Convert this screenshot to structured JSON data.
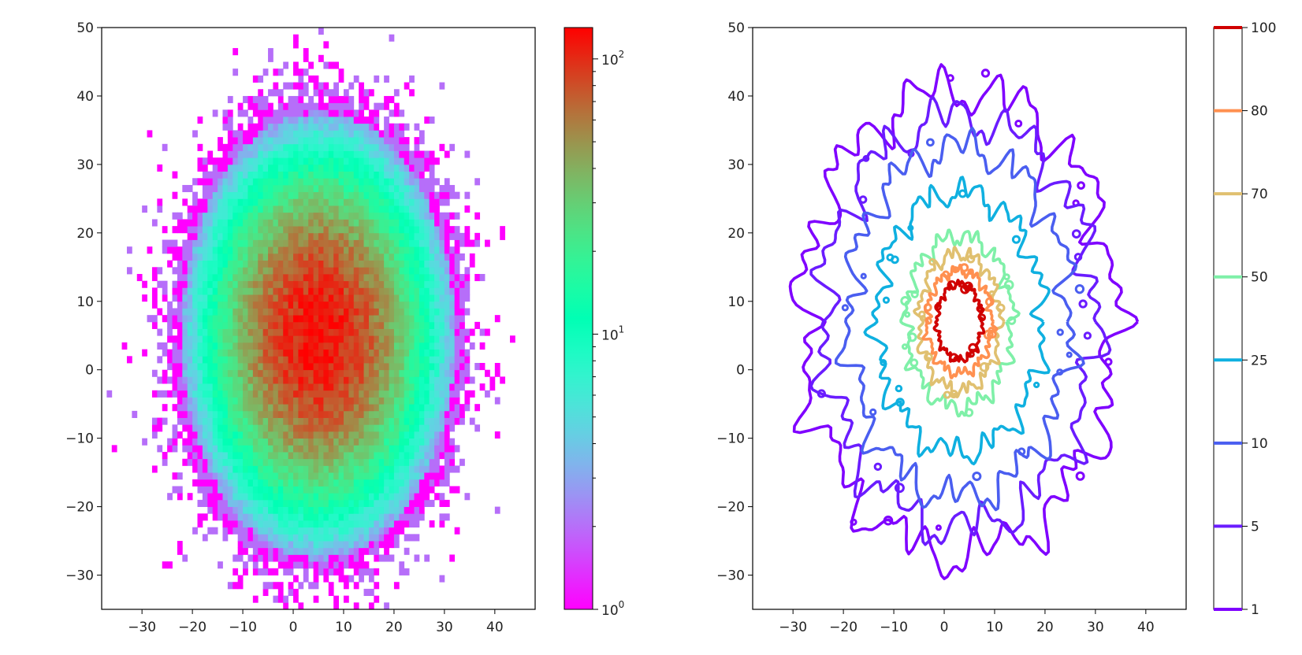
{
  "chart_data": [
    {
      "type": "heatmap",
      "title": "",
      "xlabel": "",
      "ylabel": "",
      "xlim": [
        -38,
        48
      ],
      "ylim": [
        -35,
        50
      ],
      "xticks": [
        -30,
        -20,
        -10,
        0,
        10,
        20,
        30,
        40
      ],
      "yticks": [
        -30,
        -20,
        -10,
        0,
        10,
        20,
        30,
        40,
        50
      ],
      "xtick_labels": [
        "−30",
        "−20",
        "−10",
        "0",
        "10",
        "20",
        "30",
        "40"
      ],
      "ytick_labels": [
        "−30",
        "−20",
        "−10",
        "0",
        "10",
        "20",
        "30",
        "40",
        "50"
      ],
      "distribution": {
        "center": [
          5,
          5
        ],
        "sigma": [
          10,
          12
        ],
        "peak_count": 120,
        "bins": [
          86,
          85
        ]
      },
      "colormap": "rainbow",
      "colorbar": {
        "scale": "log",
        "range": [
          1,
          130
        ],
        "ticks": [
          {
            "value": 1,
            "base": "10",
            "exp": "0"
          },
          {
            "value": 10,
            "base": "10",
            "exp": "1"
          },
          {
            "value": 100,
            "base": "10",
            "exp": "2"
          }
        ]
      }
    },
    {
      "type": "contour",
      "title": "",
      "xlabel": "",
      "ylabel": "",
      "xlim": [
        -38,
        48
      ],
      "ylim": [
        -35,
        50
      ],
      "xticks": [
        -30,
        -20,
        -10,
        0,
        10,
        20,
        30,
        40
      ],
      "yticks": [
        -30,
        -20,
        -10,
        0,
        10,
        20,
        30,
        40,
        50
      ],
      "xtick_labels": [
        "−30",
        "−20",
        "−10",
        "0",
        "10",
        "20",
        "30",
        "40"
      ],
      "ytick_labels": [
        "−30",
        "−20",
        "−10",
        "0",
        "10",
        "20",
        "30",
        "40",
        "50"
      ],
      "center": [
        3,
        7
      ],
      "levels": [
        {
          "value": 1,
          "label": "1",
          "color": "#7f00ff",
          "radii": [
            31,
            34
          ]
        },
        {
          "value": 5,
          "label": "5",
          "color": "#6a1cff",
          "radii": [
            27,
            30
          ]
        },
        {
          "value": 10,
          "label": "10",
          "color": "#4a5ef0",
          "radii": [
            22,
            25.5
          ]
        },
        {
          "value": 25,
          "label": "25",
          "color": "#0fb0e0",
          "radii": [
            16.5,
            19
          ]
        },
        {
          "value": 50,
          "label": "50",
          "color": "#7ff0a8",
          "radii": [
            10.5,
            12.5
          ]
        },
        {
          "value": 70,
          "label": "70",
          "color": "#e0c070",
          "radii": [
            8,
            10
          ]
        },
        {
          "value": 80,
          "label": "80",
          "color": "#ff9050",
          "radii": [
            6.5,
            7.5
          ]
        },
        {
          "value": 100,
          "label": "100",
          "color": "#d00000",
          "radii": [
            4.5,
            5.5
          ]
        }
      ]
    }
  ]
}
